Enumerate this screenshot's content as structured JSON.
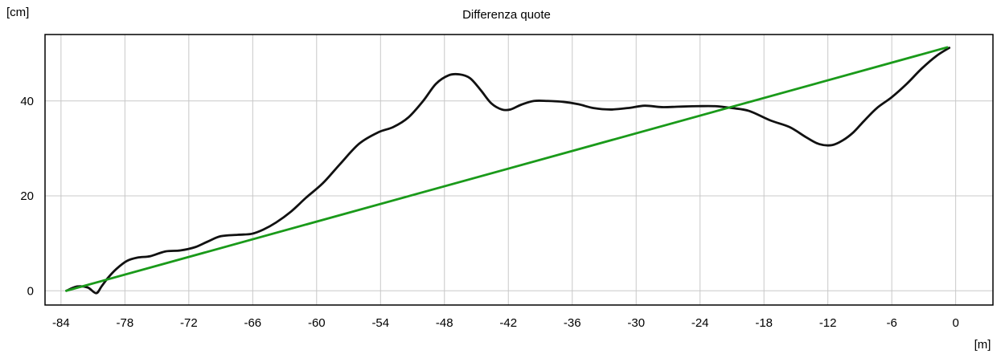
{
  "chart_data": {
    "type": "line",
    "title": "Differenza quote",
    "ylabel": "[cm]",
    "xlabel": "[m]",
    "xlim": [
      -85.5,
      3.5
    ],
    "ylim": [
      -3,
      54
    ],
    "x_ticks": [
      -84,
      -78,
      -72,
      -66,
      -60,
      -54,
      -48,
      -42,
      -36,
      -30,
      -24,
      -18,
      -12,
      -6,
      0
    ],
    "y_ticks": [
      0,
      20,
      40
    ],
    "grid": true,
    "colors": {
      "profile": "#111111",
      "reference": "#1a9a1a",
      "grid": "#c8c8c8",
      "frame": "#000000"
    },
    "series": [
      {
        "key": "profile",
        "x": [
          -83.5,
          -82.5,
          -81.5,
          -80.7,
          -80.2,
          -79.6,
          -78.8,
          -77.8,
          -76.8,
          -75.6,
          -74.2,
          -72.8,
          -71.4,
          -70.2,
          -69.0,
          -67.4,
          -66.1,
          -65.0,
          -63.8,
          -62.4,
          -61.0,
          -59.4,
          -57.8,
          -56.0,
          -54.2,
          -52.8,
          -51.4,
          -50.0,
          -48.8,
          -47.6,
          -46.6,
          -45.6,
          -44.6,
          -43.6,
          -42.6,
          -41.8,
          -40.8,
          -39.6,
          -38.3,
          -36.8,
          -35.4,
          -34.0,
          -32.4,
          -30.8,
          -29.2,
          -27.6,
          -26.0,
          -24.2,
          -22.6,
          -21.0,
          -19.4,
          -17.4,
          -15.6,
          -14.0,
          -12.8,
          -11.6,
          -10.6,
          -9.6,
          -8.6,
          -7.4,
          -6.0,
          -4.6,
          -3.2,
          -1.8,
          -0.6
        ],
        "y": [
          0,
          0.9,
          0.7,
          -0.5,
          0.9,
          2.7,
          4.6,
          6.3,
          7.0,
          7.3,
          8.3,
          8.5,
          9.2,
          10.4,
          11.5,
          11.8,
          12.0,
          12.9,
          14.4,
          16.7,
          19.6,
          22.7,
          26.7,
          31.0,
          33.4,
          34.5,
          36.5,
          40.0,
          43.6,
          45.4,
          45.6,
          44.8,
          42.3,
          39.5,
          38.2,
          38.2,
          39.2,
          40.0,
          40.0,
          39.8,
          39.3,
          38.5,
          38.2,
          38.5,
          39.0,
          38.7,
          38.8,
          38.9,
          38.9,
          38.5,
          37.9,
          35.9,
          34.5,
          32.3,
          30.9,
          30.7,
          31.7,
          33.4,
          35.8,
          38.5,
          40.8,
          43.6,
          46.8,
          49.5,
          51.2
        ]
      },
      {
        "key": "reference",
        "x": [
          -83.5,
          -0.8
        ],
        "y": [
          0,
          51.3
        ]
      }
    ]
  }
}
